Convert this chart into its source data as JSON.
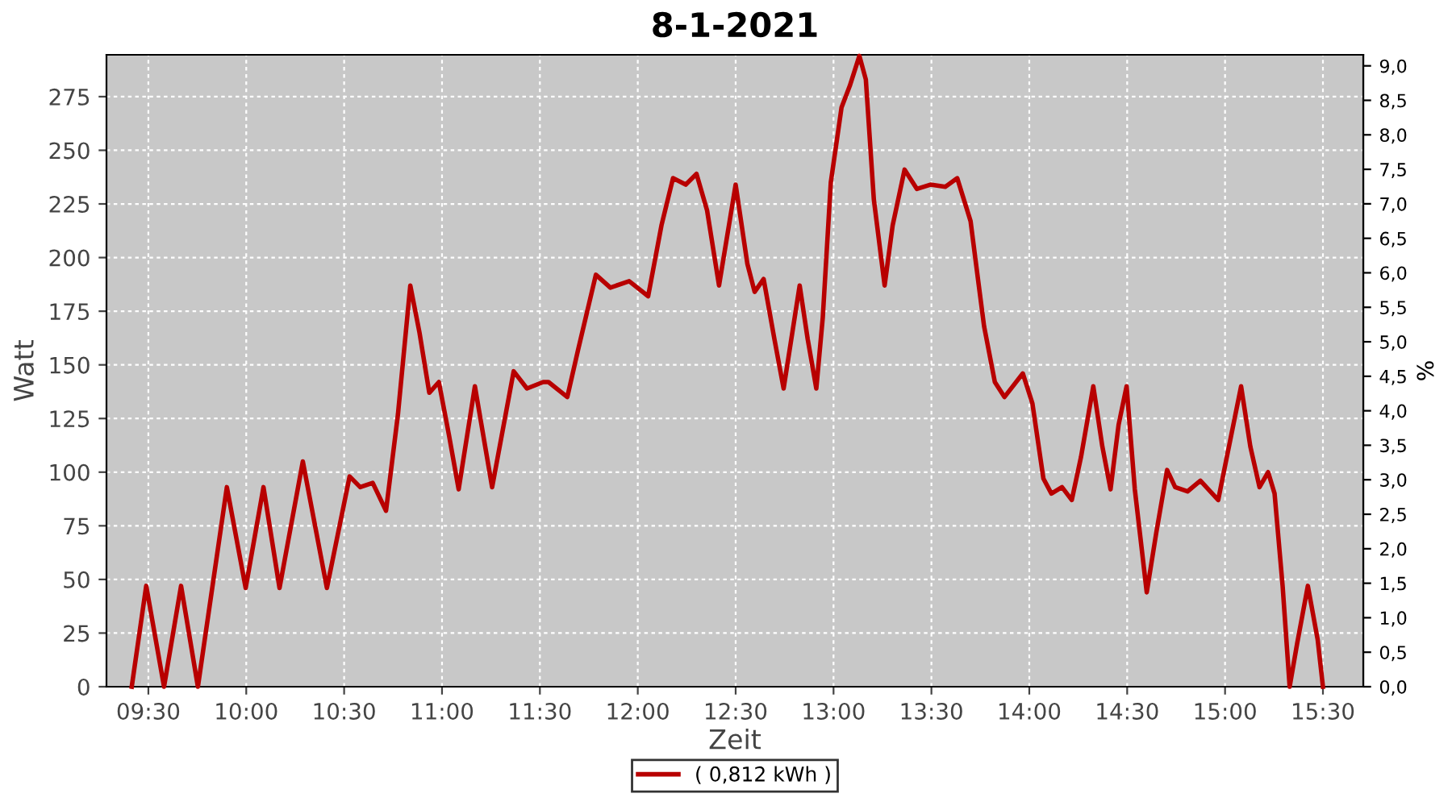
{
  "chart_data": {
    "type": "line",
    "title": "8-1-2021",
    "xlabel": "Zeit",
    "ylabel": "Watt",
    "y2label": "%",
    "x": [
      9.415,
      9.489,
      9.58,
      9.667,
      9.753,
      9.901,
      9.997,
      10.088,
      10.17,
      10.289,
      10.412,
      10.528,
      10.582,
      10.646,
      10.714,
      10.775,
      10.838,
      10.885,
      10.935,
      10.984,
      11.036,
      11.085,
      11.168,
      11.256,
      11.366,
      11.434,
      11.517,
      11.544,
      11.64,
      11.695,
      11.786,
      11.86,
      11.956,
      12.053,
      12.121,
      12.18,
      12.245,
      12.3,
      12.354,
      12.415,
      12.5,
      12.56,
      12.597,
      12.643,
      12.698,
      12.745,
      12.827,
      12.868,
      12.912,
      12.945,
      12.986,
      13.041,
      13.083,
      13.132,
      13.165,
      13.206,
      13.261,
      13.302,
      13.363,
      13.426,
      13.495,
      13.571,
      13.632,
      13.7,
      13.742,
      13.769,
      13.824,
      13.873,
      13.967,
      14.016,
      14.072,
      14.113,
      14.167,
      14.217,
      14.264,
      14.327,
      14.373,
      14.415,
      14.456,
      14.497,
      14.539,
      14.6,
      14.649,
      14.704,
      14.745,
      14.808,
      14.874,
      14.965,
      15.02,
      15.082,
      15.129,
      15.176,
      15.22,
      15.253,
      15.294,
      15.33,
      15.368,
      15.423,
      15.473,
      15.5
    ],
    "series": [
      {
        "name": "( 0,812 kWh )",
        "color": "#b80000",
        "values": [
          0,
          47,
          0,
          47,
          0,
          93,
          46,
          93,
          46,
          105,
          46,
          98,
          93,
          95,
          82,
          127,
          187,
          165,
          137,
          142,
          117,
          92,
          140,
          93,
          147,
          139,
          142,
          142,
          135,
          157,
          192,
          186,
          189,
          182,
          215,
          237,
          234,
          239,
          222,
          187,
          234,
          197,
          184,
          190,
          162,
          139,
          187,
          162,
          139,
          172,
          235,
          270,
          280,
          294,
          283,
          227,
          187,
          215,
          241,
          232,
          234,
          233,
          237,
          217,
          187,
          168,
          142,
          135,
          146,
          132,
          97,
          90,
          93,
          87,
          107,
          140,
          112,
          92,
          122,
          140,
          92,
          44,
          72,
          101,
          93,
          91,
          96,
          87,
          112,
          140,
          112,
          93,
          100,
          90,
          47,
          0,
          20,
          47,
          22,
          0
        ]
      }
    ],
    "xlim": [
      9.286,
      15.706
    ],
    "ylim": [
      0,
      294.5
    ],
    "y2lim": [
      0,
      9.16
    ],
    "xticks": [
      {
        "value": 9.5,
        "label": "09:30"
      },
      {
        "value": 10,
        "label": "10:00"
      },
      {
        "value": 10.5,
        "label": "10:30"
      },
      {
        "value": 11,
        "label": "11:00"
      },
      {
        "value": 11.5,
        "label": "11:30"
      },
      {
        "value": 12,
        "label": "12:00"
      },
      {
        "value": 12.5,
        "label": "12:30"
      },
      {
        "value": 13,
        "label": "13:00"
      },
      {
        "value": 13.5,
        "label": "13:30"
      },
      {
        "value": 14,
        "label": "14:00"
      },
      {
        "value": 14.5,
        "label": "14:30"
      },
      {
        "value": 15,
        "label": "15:00"
      },
      {
        "value": 15.5,
        "label": "15:30"
      }
    ],
    "yticks": [
      0,
      25,
      50,
      75,
      100,
      125,
      150,
      175,
      200,
      225,
      250,
      275
    ],
    "y2ticks": [
      {
        "value": 0,
        "label": "0,0"
      },
      {
        "value": 0.5,
        "label": "0,5"
      },
      {
        "value": 1,
        "label": "1,0"
      },
      {
        "value": 1.5,
        "label": "1,5"
      },
      {
        "value": 2,
        "label": "2,0"
      },
      {
        "value": 2.5,
        "label": "2,5"
      },
      {
        "value": 3,
        "label": "3,0"
      },
      {
        "value": 3.5,
        "label": "3,5"
      },
      {
        "value": 4,
        "label": "4,0"
      },
      {
        "value": 4.5,
        "label": "4,5"
      },
      {
        "value": 5,
        "label": "5,0"
      },
      {
        "value": 5.5,
        "label": "5,5"
      },
      {
        "value": 6,
        "label": "6,0"
      },
      {
        "value": 6.5,
        "label": "6,5"
      },
      {
        "value": 7,
        "label": "7,0"
      },
      {
        "value": 7.5,
        "label": "7,5"
      },
      {
        "value": 8,
        "label": "8,0"
      },
      {
        "value": 8.5,
        "label": "8,5"
      },
      {
        "value": 9,
        "label": "9,0"
      }
    ],
    "grid": true,
    "legend": "bottom",
    "marker": "none",
    "line_style": "solid"
  }
}
